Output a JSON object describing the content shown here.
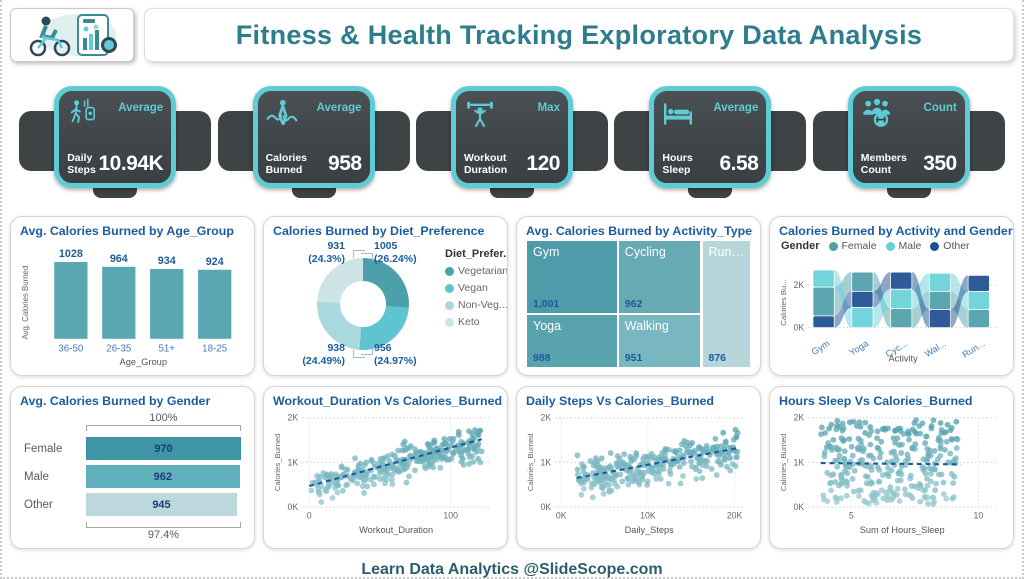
{
  "header": {
    "title": "Fitness & Health Tracking Exploratory Data Analysis",
    "logo": "fitness-exercise-bike-illustration"
  },
  "footer": {
    "text": "Learn Data Analytics @SlideScope.com"
  },
  "colors": {
    "accent_teal": "#5ecbd5",
    "card_dark": "#3e4346",
    "title_teal": "#2e7d8c",
    "chart_title_blue": "#1a5c9e",
    "bar_teal": "#58a7b3",
    "trend_navy": "#1d5b99",
    "axis_gray": "#666666",
    "tick_blue": "#3f7cba"
  },
  "kpis": [
    {
      "icon": "walking-person-icon",
      "agg": "Average",
      "label": "Daily Steps",
      "value": "10.94K"
    },
    {
      "icon": "battle-ropes-icon",
      "agg": "Average",
      "label": "Calories Burned",
      "value": "958"
    },
    {
      "icon": "weight-lifter-icon",
      "agg": "Max",
      "label": "Workout Duration",
      "value": "120"
    },
    {
      "icon": "sleep-bed-icon",
      "agg": "Average",
      "label": "Hours Sleep",
      "value": "6.58"
    },
    {
      "icon": "members-group-icon",
      "agg": "Count",
      "label": "Members Count",
      "value": "350"
    }
  ],
  "chart_data": [
    {
      "type": "bar",
      "title": "Avg. Calories Burned by Age_Group",
      "categories": [
        "36-50",
        "26-35",
        "51+",
        "18-25"
      ],
      "values": [
        1028,
        964,
        934,
        924
      ],
      "xlabel": "Age_Group",
      "ylabel": "Avg. Calories Burned",
      "ylim": [
        0,
        1100
      ],
      "bar_color": "#58a7b3"
    },
    {
      "type": "donut",
      "title": "Calories Burned by Diet_Preference",
      "legend_title": "Diet_Prefer...",
      "slices": [
        {
          "label": "Vegetarian",
          "value": 1005,
          "pct": "26.24%",
          "color": "#4d9fac"
        },
        {
          "label": "Vegan",
          "value": 956,
          "pct": "24.97%",
          "color": "#5fc4cf"
        },
        {
          "label": "Non-Veg...",
          "value": 938,
          "pct": "24.49%",
          "color": "#a9d8de"
        },
        {
          "label": "Keto",
          "value": 931,
          "pct": "24.3%",
          "color": "#cde4e7"
        }
      ]
    },
    {
      "type": "treemap",
      "title": "Avg. Calories Burned by Activity_Type",
      "cells": [
        {
          "label": "Gym",
          "value": "1,001",
          "color": "#4e9ba9"
        },
        {
          "label": "Cycling",
          "value": "962",
          "color": "#67aab4"
        },
        {
          "label": "Runn...",
          "value": "876",
          "color": "#b7d6db"
        },
        {
          "label": "Yoga",
          "value": "988",
          "color": "#58a3ae"
        },
        {
          "label": "Walking",
          "value": "951",
          "color": "#79b7c0"
        }
      ]
    },
    {
      "type": "ribbon",
      "title": "Calories Burned by Activity and Gender",
      "legend_title": "Gender",
      "series": [
        {
          "name": "Female",
          "color": "#4f9faa"
        },
        {
          "name": "Male",
          "color": "#69d1da"
        },
        {
          "name": "Other",
          "color": "#1c4f90"
        }
      ],
      "categories": [
        "Gym",
        "Yoga",
        "Cyc...",
        "Wal...",
        "Run..."
      ],
      "xlabel": "Activity",
      "ylabel": "Calories Bu...",
      "yticks": [
        "0K",
        "2K"
      ],
      "stacks_k_top_to_bottom": [
        [
          [
            "Male",
            0.8
          ],
          [
            "Female",
            1.35
          ],
          [
            "Other",
            0.55
          ]
        ],
        [
          [
            "Female",
            0.9
          ],
          [
            "Other",
            0.75
          ],
          [
            "Male",
            0.95
          ]
        ],
        [
          [
            "Other",
            0.8
          ],
          [
            "Male",
            0.9
          ],
          [
            "Female",
            0.9
          ]
        ],
        [
          [
            "Male",
            0.85
          ],
          [
            "Female",
            0.85
          ],
          [
            "Other",
            0.85
          ]
        ],
        [
          [
            "Other",
            0.75
          ],
          [
            "Male",
            0.85
          ],
          [
            "Female",
            0.85
          ]
        ]
      ]
    },
    {
      "type": "funnel",
      "title": "Avg. Calories Burned by Gender",
      "categories": [
        "Female",
        "Male",
        "Other"
      ],
      "values": [
        970,
        962,
        945
      ],
      "colors": [
        "#3e96a4",
        "#5fb0bb",
        "#bdd8dd"
      ],
      "top_pct": "100%",
      "bottom_pct": "97.4%"
    },
    {
      "type": "scatter",
      "title": "Workout_Duration Vs Calories_Burned",
      "xlabel": "Workout_Duration",
      "ylabel": "Calories_Burned",
      "xticks": [
        {
          "v": 0,
          "label": "0"
        },
        {
          "v": 100,
          "label": "100"
        }
      ],
      "xmin": -5,
      "xmax": 128,
      "yticks": [
        "0K",
        "1K",
        "2K"
      ],
      "ylim": [
        0,
        2000
      ],
      "trend": {
        "x1": 0,
        "y1": 470,
        "x2": 122,
        "y2": 1520
      },
      "n": 300,
      "seed": 7,
      "gen": {
        "kind": "linear",
        "x0": 1,
        "xspan": 121,
        "slope": 8.2,
        "intercept": 440,
        "noise": 225
      }
    },
    {
      "type": "scatter",
      "title": "Daily Steps Vs Calories_Burned",
      "xlabel": "Daily_Steps",
      "ylabel": "Calories_Burned",
      "xticks": [
        {
          "v": 0,
          "label": "0K"
        },
        {
          "v": 10000,
          "label": "10K"
        },
        {
          "v": 20000,
          "label": "20K"
        }
      ],
      "xmin": -700,
      "xmax": 21000,
      "yticks": [
        "0K",
        "1K",
        "2K"
      ],
      "ylim": [
        0,
        2000
      ],
      "trend": {
        "x1": 1800,
        "y1": 650,
        "x2": 20400,
        "y2": 1320
      },
      "n": 300,
      "seed": 11,
      "gen": {
        "kind": "linear",
        "x0": 1800,
        "xspan": 18600,
        "slope": 0.034,
        "intercept": 570,
        "noise": 265
      }
    },
    {
      "type": "scatter",
      "title": "Hours Sleep Vs Calories_Burned",
      "xlabel": "Sum of Hours_Sleep",
      "ylabel": "Calories_Burned",
      "xticks": [
        {
          "v": 5,
          "label": "5"
        },
        {
          "v": 10,
          "label": "10"
        }
      ],
      "xmin": 3.3,
      "xmax": 10.7,
      "yticks": [
        "0K",
        "1K",
        "2K"
      ],
      "ylim": [
        0,
        2000
      ],
      "trend": {
        "x1": 3.8,
        "y1": 985,
        "x2": 9.3,
        "y2": 955
      },
      "n": 300,
      "seed": 13,
      "gen": {
        "kind": "uniform",
        "x0": 3.8,
        "xspan": 5.4,
        "ymin": 60,
        "yspan": 1900
      }
    }
  ]
}
